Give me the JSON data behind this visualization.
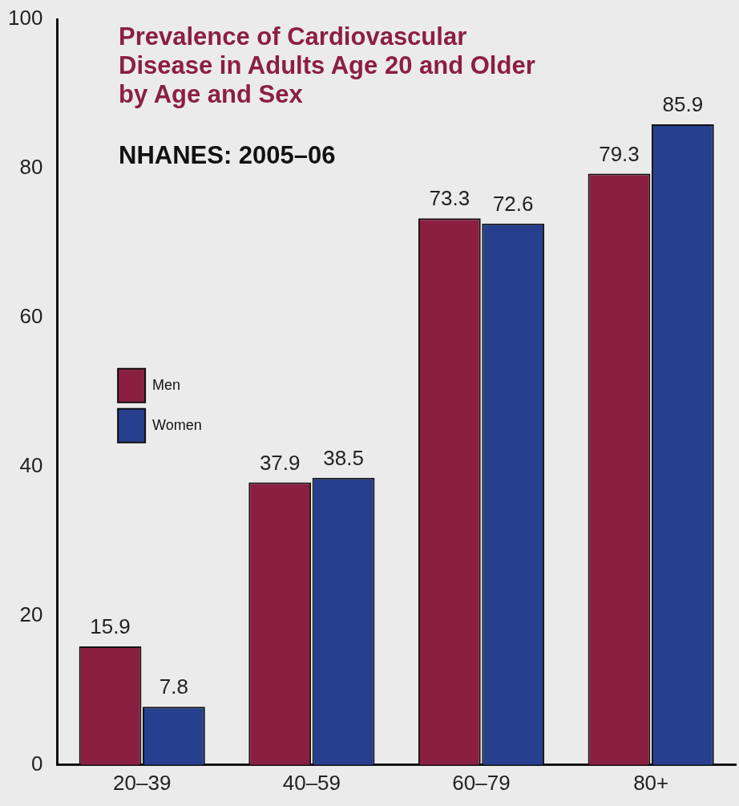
{
  "chart_data": {
    "type": "bar",
    "title": "Prevalence of Cardiovascular Disease in Adults Age 20 and Older by Age and Sex",
    "subtitle": "NHANES: 2005–06",
    "categories": [
      "20–39",
      "40–59",
      "60–79",
      "80+"
    ],
    "series": [
      {
        "name": "Men",
        "color": "#8b1f42",
        "values": [
          15.9,
          37.9,
          73.3,
          79.3
        ]
      },
      {
        "name": "Women",
        "color": "#263f8e",
        "values": [
          7.8,
          38.5,
          72.6,
          85.9
        ]
      }
    ],
    "ylim": [
      0,
      100
    ],
    "yticks": [
      0,
      20,
      40,
      60,
      80,
      100
    ],
    "grid": false,
    "legend": "left",
    "data_labels": true
  }
}
